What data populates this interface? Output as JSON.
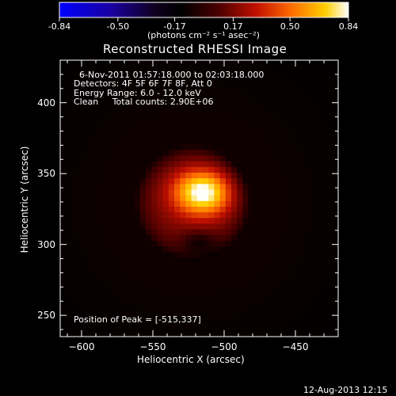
{
  "chart_data": {
    "type": "heatmap",
    "title": "Reconstructed RHESSI Image",
    "colorbar": {
      "ticks": [
        "-0.84",
        "-0.50",
        "-0.17",
        "0.17",
        "0.50",
        "0.84"
      ],
      "tick_values": [
        -0.84,
        -0.5,
        -0.17,
        0.17,
        0.5,
        0.84
      ],
      "range": [
        -0.84,
        0.84
      ],
      "units": "(photons cm⁻² s⁻¹ asec⁻²)"
    },
    "xlabel": "Heliocentric X (arcsec)",
    "ylabel": "Heliocentric Y (arcsec)",
    "xlim": [
      -615,
      -420
    ],
    "ylim": [
      235,
      430
    ],
    "xticks": [
      -600,
      -550,
      -500,
      -450
    ],
    "xtick_labels": [
      "−600",
      "−550",
      "−500",
      "−450"
    ],
    "yticks": [
      250,
      300,
      350,
      400
    ],
    "ytick_labels": [
      "250",
      "300",
      "350",
      "400"
    ],
    "info_lines": [
      "6-Nov-2011 01:57:18.000 to 02:03:18.000",
      "Detectors: 4F 5F 6F 7F 8F, Att 0",
      "Energy Range: 6.0 - 12.0 keV",
      "Clean     Total counts: 2.90E+06"
    ],
    "peak_text": "Position of Peak = [-515,337]",
    "peak": [
      -515,
      337
    ],
    "peak_value": 0.84,
    "source_center": [
      -522,
      330
    ],
    "source_radius_arcsec": 40,
    "footer_timestamp": "12-Aug-2013 12:15"
  },
  "colors": {
    "background": "#000000",
    "text": "#ffffff",
    "colormap": [
      "#0000ff",
      "#000000",
      "#7a0000",
      "#ff4400",
      "#ffb000",
      "#ffffff"
    ]
  }
}
